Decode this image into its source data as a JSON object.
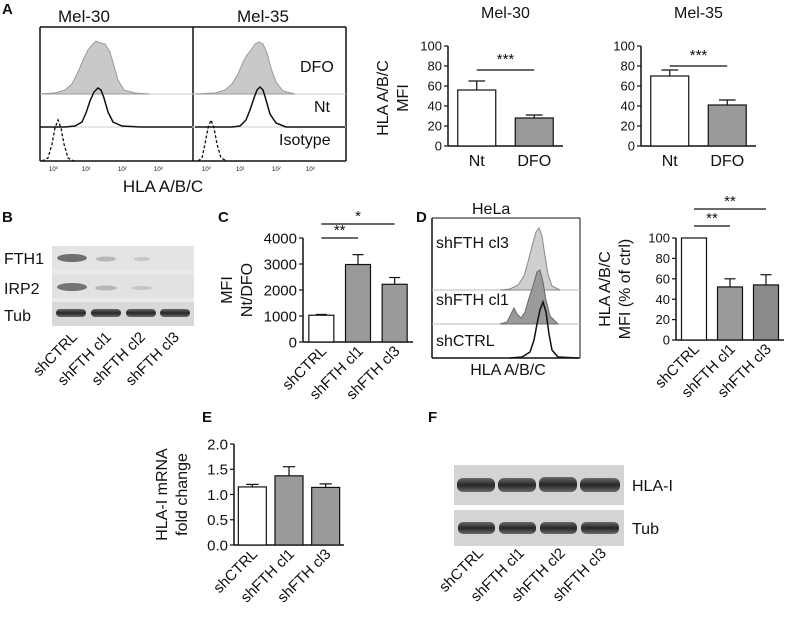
{
  "panels": {
    "A": {
      "letter": "A",
      "flow": {
        "col_titles": [
          "Mel-30",
          "Mel-35"
        ],
        "row_labels": [
          "DFO",
          "Nt",
          "Isotype"
        ],
        "xlabel": "HLA A/B/C",
        "tick_labels": [
          "10⁰",
          "10¹",
          "10²",
          "10³"
        ]
      },
      "ylabel_lines": [
        "HLA A/B/C",
        "MFI"
      ]
    },
    "B": {
      "letter": "B",
      "rows": [
        "FTH1",
        "IRP2",
        "Tub"
      ],
      "lanes": [
        "shCTRL",
        "shFTH cl1",
        "shFTH cl2",
        "shFTH cl3"
      ]
    },
    "C": {
      "letter": "C"
    },
    "D": {
      "letter": "D",
      "flow_title": "HeLa",
      "flow_labels": [
        "shFTH cl3",
        "shFTH cl1",
        "shCTRL"
      ],
      "flow_xlabel": "HLA A/B/C"
    },
    "E": {
      "letter": "E"
    },
    "F": {
      "letter": "F",
      "rows": [
        "HLA-I",
        "Tub"
      ],
      "lanes": [
        "shCTRL",
        "shFTH cl1",
        "shFTH cl2",
        "shFTH cl3"
      ]
    }
  },
  "chart_data": [
    {
      "id": "A-mel30",
      "type": "bar",
      "title": "Mel-30",
      "categories": [
        "Nt",
        "DFO"
      ],
      "values": [
        56,
        28
      ],
      "errors": [
        9,
        3
      ],
      "colors": [
        "#ffffff",
        "#9a9a9a"
      ],
      "ylim": [
        0,
        100
      ],
      "yticks": [
        0,
        20,
        40,
        60,
        80,
        100
      ],
      "ylabel_lines": [],
      "significance": [
        {
          "from": 0,
          "to": 1,
          "label": "***"
        }
      ]
    },
    {
      "id": "A-mel35",
      "type": "bar",
      "title": "Mel-35",
      "categories": [
        "Nt",
        "DFO"
      ],
      "values": [
        70,
        41
      ],
      "errors": [
        6,
        5
      ],
      "colors": [
        "#ffffff",
        "#9a9a9a"
      ],
      "ylim": [
        0,
        100
      ],
      "yticks": [
        0,
        20,
        40,
        60,
        80,
        100
      ],
      "ylabel_lines": [],
      "significance": [
        {
          "from": 0,
          "to": 1,
          "label": "***"
        }
      ]
    },
    {
      "id": "C",
      "type": "bar",
      "title": "",
      "categories": [
        "shCTRL",
        "shFTH cl1",
        "shFTH cl3"
      ],
      "values": [
        1030,
        2980,
        2220
      ],
      "errors": [
        30,
        380,
        260
      ],
      "colors": [
        "#ffffff",
        "#9a9a9a",
        "#9a9a9a"
      ],
      "ylim": [
        0,
        4000
      ],
      "yticks": [
        0,
        1000,
        2000,
        3000,
        4000
      ],
      "ylabel_lines": [
        "MFI",
        "Nt/DFO"
      ],
      "significance": [
        {
          "from": 0,
          "to": 1,
          "label": "**"
        },
        {
          "from": 0,
          "to": 2,
          "label": "*"
        }
      ]
    },
    {
      "id": "D",
      "type": "bar",
      "title": "",
      "categories": [
        "shCTRL",
        "shFTH cl1",
        "shFTH cl3"
      ],
      "values": [
        100,
        52,
        54
      ],
      "errors": [
        0,
        8,
        10
      ],
      "colors": [
        "#ffffff",
        "#9a9a9a",
        "#8a8a8a"
      ],
      "ylim": [
        0,
        100
      ],
      "yticks": [
        0,
        20,
        40,
        60,
        80,
        100
      ],
      "ylabel_lines": [
        "HLA A/B/C",
        "MFI (% of ctrl)"
      ],
      "significance": [
        {
          "from": 0,
          "to": 1,
          "label": "**"
        },
        {
          "from": 0,
          "to": 2,
          "label": "**"
        }
      ]
    },
    {
      "id": "E",
      "type": "bar",
      "title": "",
      "categories": [
        "shCTRL",
        "shFTH cl1",
        "shFTH cl3"
      ],
      "values": [
        1.15,
        1.37,
        1.14
      ],
      "errors": [
        0.05,
        0.18,
        0.07
      ],
      "colors": [
        "#ffffff",
        "#9a9a9a",
        "#9a9a9a"
      ],
      "ylim": [
        0,
        2.0
      ],
      "yticks": [
        0.0,
        0.5,
        1.0,
        1.5,
        2.0
      ],
      "ytick_decimals": 1,
      "ylabel_lines": [
        "HLA-I mRNA",
        "fold change"
      ],
      "significance": []
    }
  ]
}
